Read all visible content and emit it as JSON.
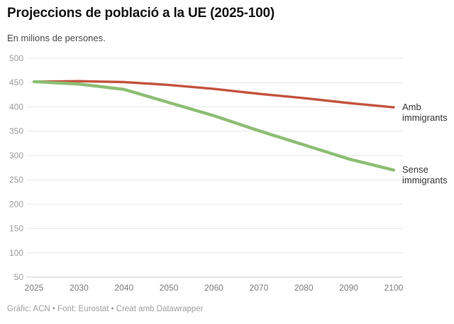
{
  "title": "Projeccions de població a la UE (2025-100)",
  "subtitle": "En milions de persones.",
  "footer": "Gràfic: ACN • Font: Eurostat • Creat amb Datawrapper",
  "colors": {
    "amb_immigrants": "#c4543e",
    "sense_immigrants": "#8cbe73",
    "gridline": "#e7e7e7",
    "baseline": "#c9c9c9",
    "y_tick_text": "#9d9d9d",
    "x_tick_text": "#7d7d7d"
  },
  "chart_data": {
    "type": "line",
    "title": "Projeccions de població a la UE (2025-100)",
    "subtitle": "En milions de persones.",
    "xlabel": "",
    "ylabel": "En milions de persones",
    "x": [
      "2025",
      "2030",
      "2040",
      "2050",
      "2060",
      "2070",
      "2080",
      "2090",
      "2100"
    ],
    "series": [
      {
        "name": "Amb immigrants",
        "color": "#c4543e",
        "values": [
          452,
          453,
          451,
          445,
          437,
          427,
          418,
          408,
          399
        ]
      },
      {
        "name": "Sense immigrants",
        "color": "#8cbe73",
        "values": [
          452,
          447,
          436,
          409,
          382,
          351,
          322,
          293,
          270
        ]
      }
    ],
    "ylim": [
      50,
      500
    ],
    "yticks": [
      50,
      100,
      150,
      200,
      250,
      300,
      350,
      400,
      450,
      500
    ],
    "grid": true,
    "legend_position": "labels-at-line-ends"
  }
}
